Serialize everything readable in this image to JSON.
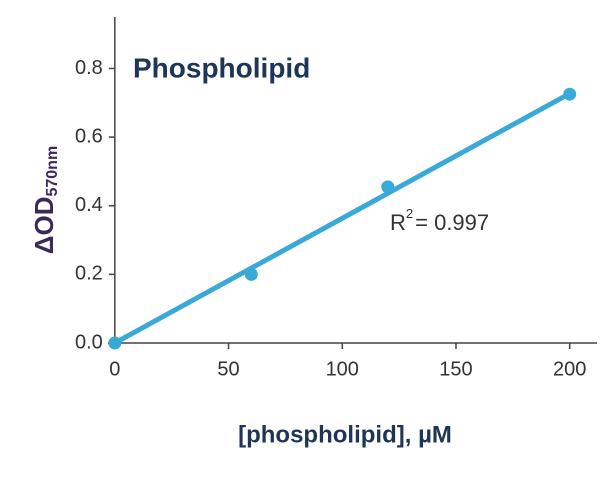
{
  "chart_data": {
    "type": "scatter",
    "title": "Phospholipid",
    "x_label": "[phospholipid], µM",
    "y_label": {
      "text": "ΔOD",
      "subscript": "570nm"
    },
    "annotation": {
      "text": "R",
      "superscript": "2",
      "rest": "= 0.997"
    },
    "series": [
      {
        "color": "#3aa9d8",
        "x": [
          0,
          60,
          120,
          200
        ],
        "values": [
          0,
          0.2,
          0.455,
          0.725
        ],
        "mode": "markers"
      },
      {
        "color": "#3aa9d8",
        "x": [
          0,
          200
        ],
        "values": [
          0,
          0.727
        ],
        "mode": "line"
      }
    ],
    "xlim": [
      -3,
      212
    ],
    "ylim": [
      0,
      0.95
    ],
    "xticks": [
      0,
      50,
      100,
      150,
      200
    ],
    "yticks": [
      {
        "value": 0,
        "label": "0.0"
      },
      0.2,
      0.4,
      0.6,
      0.8
    ]
  }
}
